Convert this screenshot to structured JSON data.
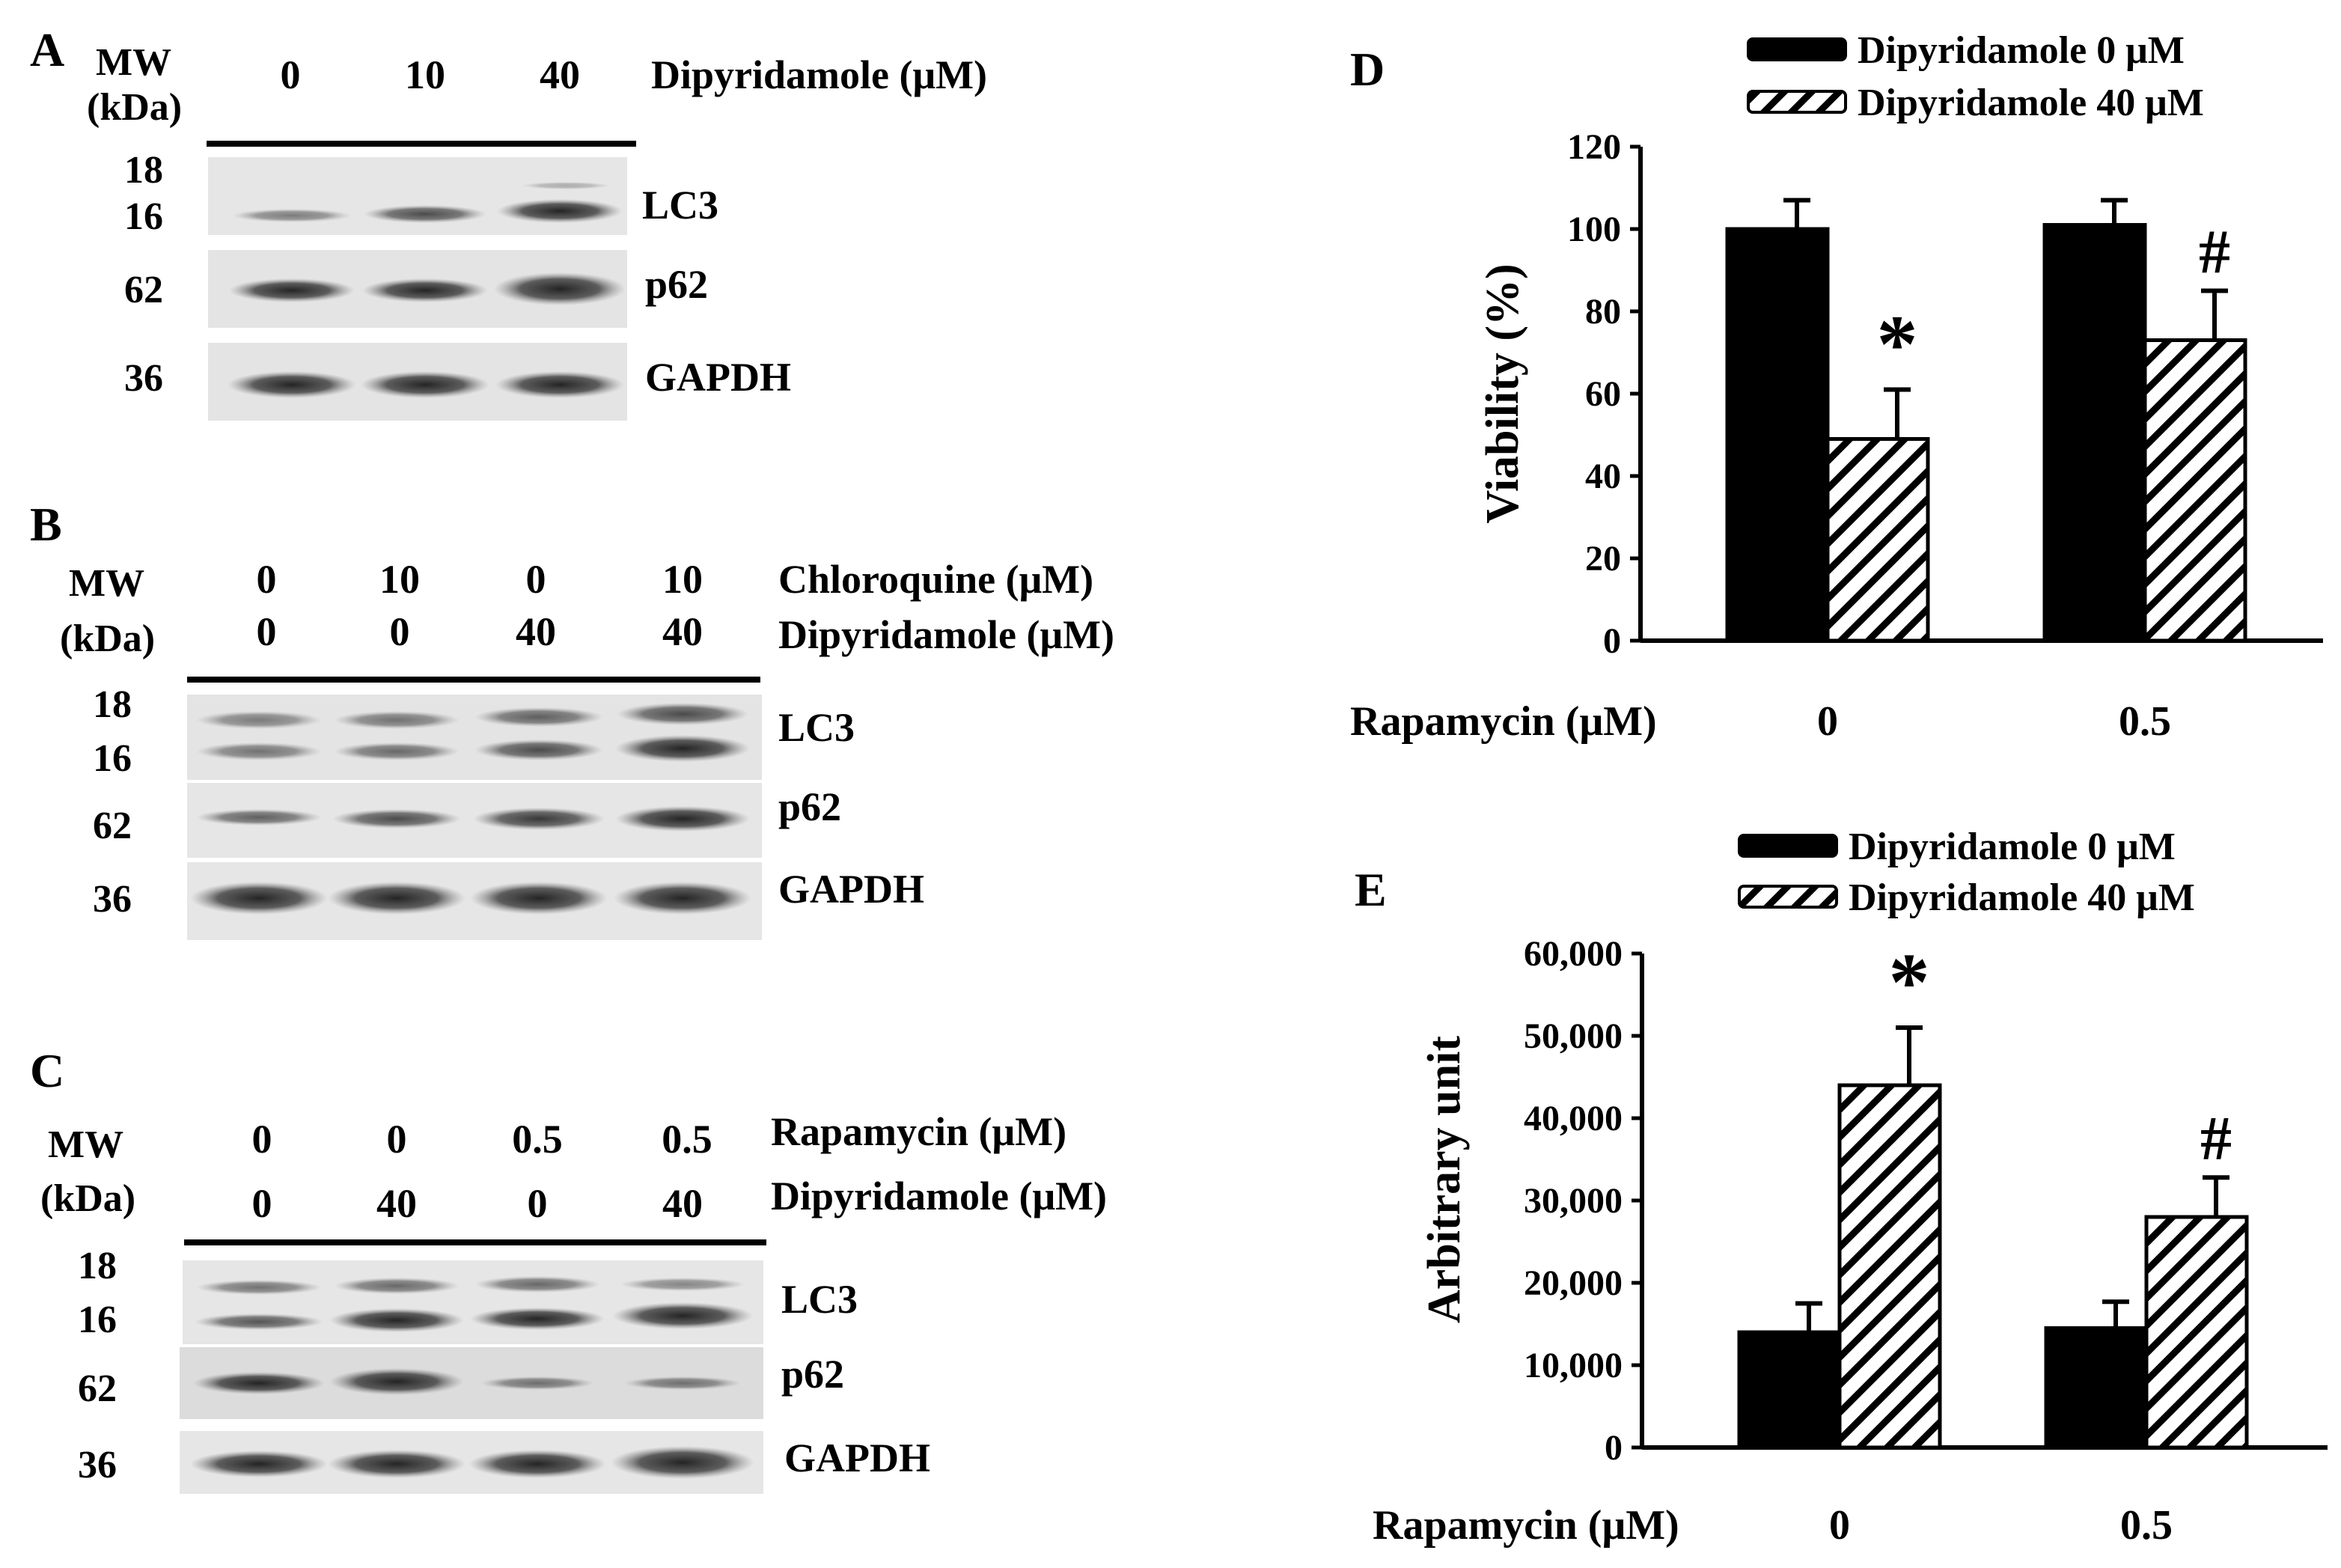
{
  "panels": {
    "A": {
      "letter": "A",
      "mw_label": "MW",
      "kda_label": "(kDa)",
      "lanes": [
        "0",
        "10",
        "40"
      ],
      "treatment": "Dipyridamole (μM)",
      "blots": [
        {
          "markers": [
            "18",
            "16"
          ],
          "label": "LC3"
        },
        {
          "markers": [
            "62"
          ],
          "label": "p62"
        },
        {
          "markers": [
            "36"
          ],
          "label": "GAPDH"
        }
      ]
    },
    "B": {
      "letter": "B",
      "mw_label": "MW",
      "kda_label": "(kDa)",
      "row1": [
        "0",
        "10",
        "0",
        "10"
      ],
      "row1_label": "Chloroquine (μM)",
      "row2": [
        "0",
        "0",
        "40",
        "40"
      ],
      "row2_label": "Dipyridamole (μM)",
      "blots": [
        {
          "markers": [
            "18",
            "16"
          ],
          "label": "LC3"
        },
        {
          "markers": [
            "62"
          ],
          "label": "p62"
        },
        {
          "markers": [
            "36"
          ],
          "label": "GAPDH"
        }
      ]
    },
    "C": {
      "letter": "C",
      "mw_label": "MW",
      "kda_label": "(kDa)",
      "row1": [
        "0",
        "0",
        "0.5",
        "0.5"
      ],
      "row1_label": "Rapamycin (μM)",
      "row2": [
        "0",
        "40",
        "0",
        "40"
      ],
      "row2_label": "Dipyridamole (μM)",
      "blots": [
        {
          "markers": [
            "18",
            "16"
          ],
          "label": "LC3"
        },
        {
          "markers": [
            "62"
          ],
          "label": "p62"
        },
        {
          "markers": [
            "36"
          ],
          "label": "GAPDH"
        }
      ]
    },
    "D": {
      "letter": "D",
      "x_title": "Rapamycin (μM)"
    },
    "E": {
      "letter": "E",
      "x_title": "Rapamycin (μM)"
    }
  },
  "chart_data": [
    {
      "panel": "D",
      "type": "bar",
      "ylabel": "Viability (%)",
      "xlabel": "Rapamycin (μM)",
      "categories": [
        "0",
        "0.5"
      ],
      "ylim": [
        0,
        120
      ],
      "yticks": [
        "0",
        "20",
        "40",
        "60",
        "80",
        "100",
        "120"
      ],
      "series": [
        {
          "name": "Dipyridamole 0 μM",
          "fill": "solid",
          "color": "#000000",
          "values": [
            100,
            101
          ],
          "errors": [
            7,
            6
          ]
        },
        {
          "name": "Dipyridamole 40 μM",
          "fill": "hatched",
          "color": "#000000",
          "values": [
            49,
            73
          ],
          "errors": [
            12,
            12
          ]
        }
      ],
      "annotations": [
        {
          "category": "0",
          "series": 1,
          "text": "*"
        },
        {
          "category": "0.5",
          "series": 1,
          "text": "#"
        }
      ],
      "legend": "top"
    },
    {
      "panel": "E",
      "type": "bar",
      "ylabel": "Arbitrary unit",
      "xlabel": "Rapamycin (μM)",
      "categories": [
        "0",
        "0.5"
      ],
      "ylim": [
        0,
        60000
      ],
      "yticks": [
        "0",
        "10,000",
        "20,000",
        "30,000",
        "40,000",
        "50,000",
        "60,000"
      ],
      "series": [
        {
          "name": "Dipyridamole 0 μM",
          "fill": "solid",
          "color": "#000000",
          "values": [
            14000,
            14500
          ],
          "errors": [
            3500,
            3200
          ]
        },
        {
          "name": "Dipyridamole 40 μM",
          "fill": "hatched",
          "color": "#000000",
          "values": [
            44000,
            28000
          ],
          "errors": [
            7000,
            4800
          ]
        }
      ],
      "annotations": [
        {
          "category": "0",
          "series": 1,
          "text": "*"
        },
        {
          "category": "0.5",
          "series": 1,
          "text": "#"
        }
      ],
      "legend": "top"
    }
  ]
}
